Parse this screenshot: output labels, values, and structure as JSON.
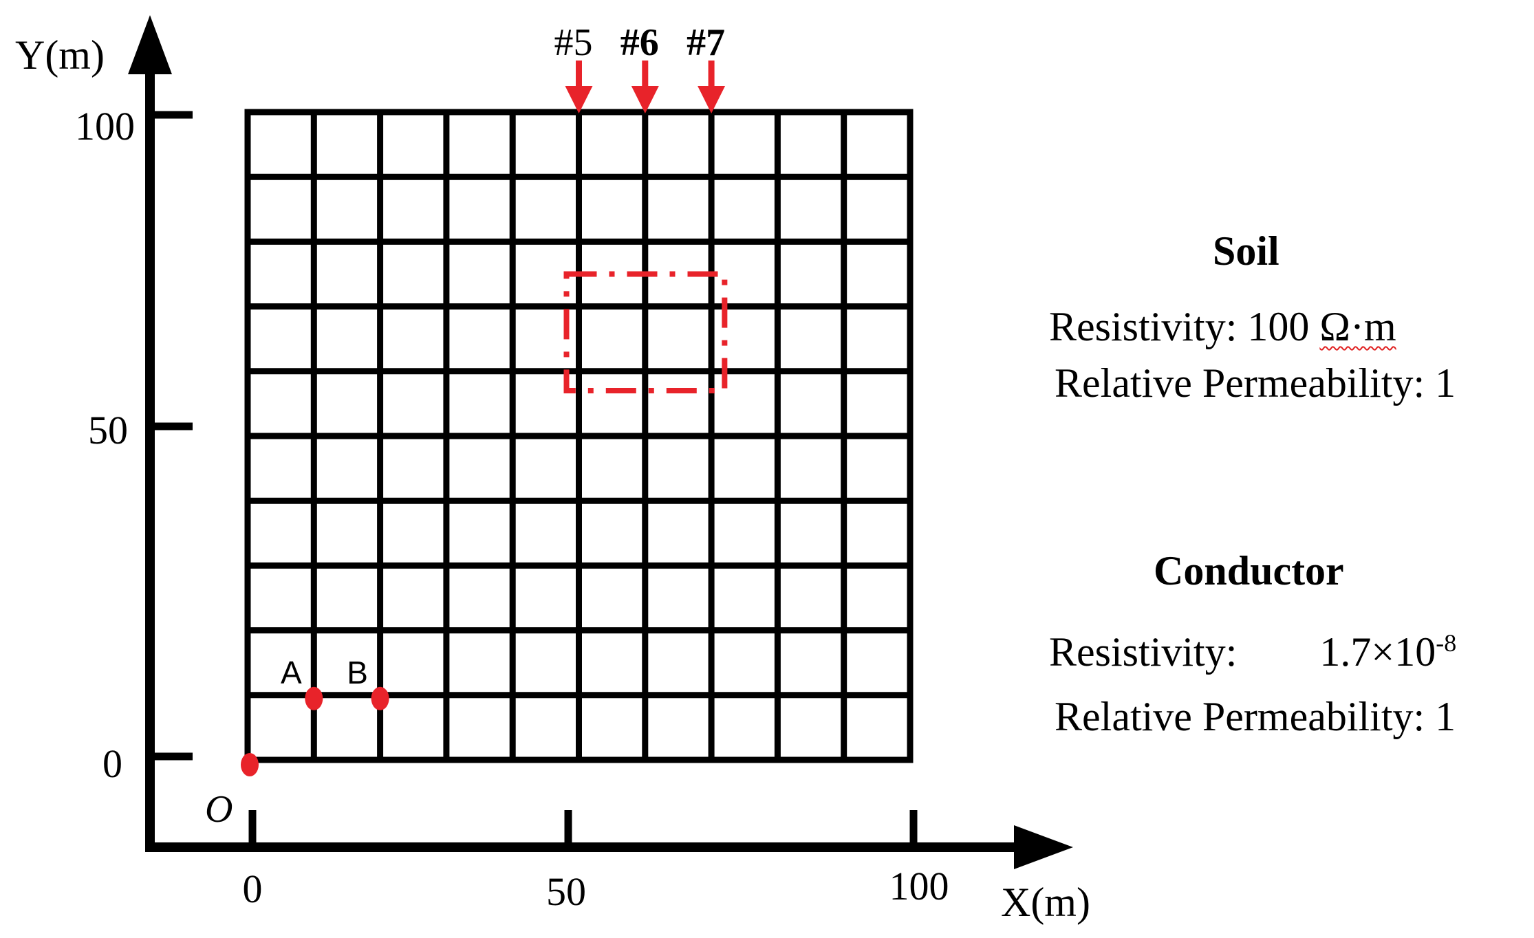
{
  "axes": {
    "y_label": "Y(m)",
    "x_label": "X(m)",
    "y_ticks": [
      "100",
      "50",
      "0"
    ],
    "x_ticks": [
      "0",
      "50",
      "100"
    ],
    "origin_label": "O"
  },
  "grid": {
    "x_min": 0,
    "x_max": 100,
    "y_min": 0,
    "y_max": 100,
    "cell_size": 10,
    "columns": 10,
    "rows": 10
  },
  "arrows": [
    {
      "label": "#5",
      "x": 50
    },
    {
      "label": "#6",
      "x": 60
    },
    {
      "label": "#7",
      "x": 70
    }
  ],
  "points": [
    {
      "label": "A",
      "x": 10,
      "y": 10
    },
    {
      "label": "B",
      "x": 20,
      "y": 10
    },
    {
      "label": "",
      "x": 0,
      "y": 0
    }
  ],
  "dashed_region": {
    "x_min": 50,
    "x_max": 72,
    "y_min": 57,
    "y_max": 75
  },
  "colors": {
    "grid": "#000000",
    "marker": "#e8232a"
  },
  "soil": {
    "heading": "Soil",
    "resistivity_label": "Resistivity:",
    "resistivity_value": "100",
    "resistivity_unit": "Ω·m",
    "permeability": "Relative Permeability: 1"
  },
  "conductor": {
    "heading": "Conductor",
    "resistivity_label": "Resistivity:",
    "resistivity_mantissa": "1.7×10",
    "resistivity_exponent": "-8",
    "permeability": "Relative Permeability: 1"
  }
}
